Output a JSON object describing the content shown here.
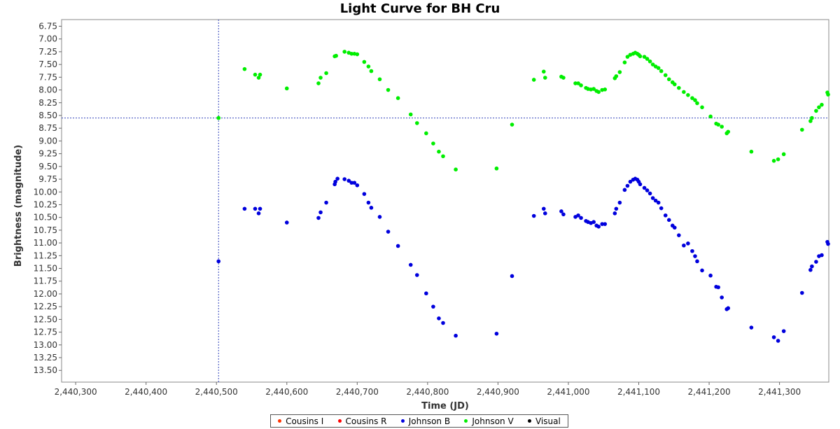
{
  "chart_data": {
    "type": "scatter",
    "title": "Light Curve for BH Cru",
    "xlabel": "Time (JD)",
    "ylabel": "Brightness (magnitude)",
    "xlim": [
      2440280,
      2441370
    ],
    "ylim": [
      13.73,
      6.62
    ],
    "y_inverted": true,
    "x_ticks": [
      2440300,
      2440400,
      2440500,
      2440600,
      2440700,
      2440800,
      2440900,
      2441000,
      2441100,
      2441200,
      2441300
    ],
    "x_tick_labels": [
      "2,440,300",
      "2,440,400",
      "2,440,500",
      "2,440,600",
      "2,440,700",
      "2,440,800",
      "2,440,900",
      "2,441,000",
      "2,441,100",
      "2,441,200",
      "2,441,300"
    ],
    "y_ticks": [
      6.75,
      7.0,
      7.25,
      7.5,
      7.75,
      8.0,
      8.25,
      8.5,
      8.75,
      9.0,
      9.25,
      9.5,
      9.75,
      10.0,
      10.25,
      10.5,
      10.75,
      11.0,
      11.25,
      11.5,
      11.75,
      12.0,
      12.25,
      12.5,
      12.75,
      13.0,
      13.25,
      13.5
    ],
    "y_tick_labels": [
      "6.75",
      "7.00",
      "7.25",
      "7.50",
      "7.75",
      "8.00",
      "8.25",
      "8.50",
      "8.75",
      "9.00",
      "9.25",
      "9.50",
      "9.75",
      "10.00",
      "10.25",
      "10.50",
      "10.75",
      "11.00",
      "11.25",
      "11.50",
      "11.75",
      "12.00",
      "12.25",
      "12.50",
      "12.75",
      "13.00",
      "13.25",
      "13.50"
    ],
    "crosshair": {
      "x": 2440503,
      "y": 8.55
    },
    "grid": false,
    "legend_position": "bottom",
    "series": [
      {
        "name": "Cousins I",
        "color": "#ff3300",
        "points": []
      },
      {
        "name": "Cousins R",
        "color": "#ff0000",
        "points": []
      },
      {
        "name": "Johnson B",
        "color": "#0000dd",
        "points": [
          [
            2440503,
            11.36
          ],
          [
            2440540,
            10.33
          ],
          [
            2440555,
            10.33
          ],
          [
            2440560,
            10.42
          ],
          [
            2440562,
            10.33
          ],
          [
            2440600,
            10.6
          ],
          [
            2440645,
            10.51
          ],
          [
            2440648,
            10.4
          ],
          [
            2440656,
            10.21
          ],
          [
            2440668,
            9.85
          ],
          [
            2440669,
            9.8
          ],
          [
            2440672,
            9.74
          ],
          [
            2440682,
            9.75
          ],
          [
            2440688,
            9.78
          ],
          [
            2440692,
            9.82
          ],
          [
            2440696,
            9.82
          ],
          [
            2440700,
            9.87
          ],
          [
            2440710,
            10.04
          ],
          [
            2440716,
            10.21
          ],
          [
            2440720,
            10.31
          ],
          [
            2440732,
            10.49
          ],
          [
            2440744,
            10.78
          ],
          [
            2440758,
            11.06
          ],
          [
            2440776,
            11.43
          ],
          [
            2440785,
            11.63
          ],
          [
            2440798,
            11.99
          ],
          [
            2440808,
            12.25
          ],
          [
            2440816,
            12.48
          ],
          [
            2440822,
            12.57
          ],
          [
            2440840,
            12.82
          ],
          [
            2440898,
            12.78
          ],
          [
            2440920,
            11.65
          ],
          [
            2440951,
            10.47
          ],
          [
            2440965,
            10.33
          ],
          [
            2440967,
            10.42
          ],
          [
            2440990,
            10.38
          ],
          [
            2440993,
            10.44
          ],
          [
            2441010,
            10.49
          ],
          [
            2441014,
            10.46
          ],
          [
            2441018,
            10.51
          ],
          [
            2441025,
            10.57
          ],
          [
            2441028,
            10.59
          ],
          [
            2441032,
            10.61
          ],
          [
            2441036,
            10.59
          ],
          [
            2441040,
            10.66
          ],
          [
            2441043,
            10.68
          ],
          [
            2441048,
            10.63
          ],
          [
            2441052,
            10.63
          ],
          [
            2441066,
            10.42
          ],
          [
            2441068,
            10.33
          ],
          [
            2441073,
            10.21
          ],
          [
            2441080,
            9.96
          ],
          [
            2441084,
            9.88
          ],
          [
            2441088,
            9.8
          ],
          [
            2441092,
            9.76
          ],
          [
            2441095,
            9.74
          ],
          [
            2441098,
            9.76
          ],
          [
            2441100,
            9.8
          ],
          [
            2441102,
            9.85
          ],
          [
            2441108,
            9.92
          ],
          [
            2441112,
            9.97
          ],
          [
            2441116,
            10.03
          ],
          [
            2441120,
            10.12
          ],
          [
            2441124,
            10.17
          ],
          [
            2441128,
            10.21
          ],
          [
            2441132,
            10.32
          ],
          [
            2441138,
            10.46
          ],
          [
            2441143,
            10.55
          ],
          [
            2441148,
            10.66
          ],
          [
            2441151,
            10.7
          ],
          [
            2441157,
            10.85
          ],
          [
            2441164,
            11.05
          ],
          [
            2441170,
            11.01
          ],
          [
            2441176,
            11.16
          ],
          [
            2441180,
            11.26
          ],
          [
            2441183,
            11.36
          ],
          [
            2441190,
            11.54
          ],
          [
            2441202,
            11.64
          ],
          [
            2441210,
            11.86
          ],
          [
            2441213,
            11.87
          ],
          [
            2441218,
            12.07
          ],
          [
            2441225,
            12.3
          ],
          [
            2441227,
            12.28
          ],
          [
            2441260,
            12.66
          ],
          [
            2441292,
            12.85
          ],
          [
            2441298,
            12.92
          ],
          [
            2441306,
            12.73
          ],
          [
            2441332,
            11.98
          ],
          [
            2441344,
            11.53
          ],
          [
            2441346,
            11.46
          ],
          [
            2441352,
            11.37
          ],
          [
            2441356,
            11.26
          ],
          [
            2441360,
            11.24
          ],
          [
            2441368,
            10.98
          ],
          [
            2441369,
            11.02
          ]
        ]
      },
      {
        "name": "Johnson V",
        "color": "#00ee00",
        "points": [
          [
            2440503,
            8.55
          ],
          [
            2440540,
            7.59
          ],
          [
            2440555,
            7.7
          ],
          [
            2440560,
            7.76
          ],
          [
            2440562,
            7.7
          ],
          [
            2440600,
            7.97
          ],
          [
            2440645,
            7.87
          ],
          [
            2440648,
            7.76
          ],
          [
            2440656,
            7.67
          ],
          [
            2440668,
            7.34
          ],
          [
            2440670,
            7.33
          ],
          [
            2440682,
            7.25
          ],
          [
            2440688,
            7.27
          ],
          [
            2440692,
            7.29
          ],
          [
            2440696,
            7.29
          ],
          [
            2440700,
            7.3
          ],
          [
            2440710,
            7.45
          ],
          [
            2440716,
            7.54
          ],
          [
            2440720,
            7.63
          ],
          [
            2440732,
            7.79
          ],
          [
            2440744,
            8.0
          ],
          [
            2440758,
            8.16
          ],
          [
            2440776,
            8.48
          ],
          [
            2440785,
            8.65
          ],
          [
            2440798,
            8.85
          ],
          [
            2440808,
            9.05
          ],
          [
            2440816,
            9.21
          ],
          [
            2440822,
            9.3
          ],
          [
            2440840,
            9.56
          ],
          [
            2440898,
            9.54
          ],
          [
            2440920,
            8.68
          ],
          [
            2440951,
            7.8
          ],
          [
            2440965,
            7.64
          ],
          [
            2440967,
            7.76
          ],
          [
            2440990,
            7.74
          ],
          [
            2440993,
            7.76
          ],
          [
            2441010,
            7.87
          ],
          [
            2441014,
            7.87
          ],
          [
            2441018,
            7.91
          ],
          [
            2441025,
            7.96
          ],
          [
            2441028,
            7.98
          ],
          [
            2441032,
            7.99
          ],
          [
            2441036,
            7.98
          ],
          [
            2441040,
            8.02
          ],
          [
            2441043,
            8.04
          ],
          [
            2441048,
            8.0
          ],
          [
            2441052,
            7.99
          ],
          [
            2441066,
            7.77
          ],
          [
            2441068,
            7.73
          ],
          [
            2441073,
            7.65
          ],
          [
            2441080,
            7.46
          ],
          [
            2441084,
            7.35
          ],
          [
            2441088,
            7.31
          ],
          [
            2441092,
            7.29
          ],
          [
            2441095,
            7.27
          ],
          [
            2441098,
            7.29
          ],
          [
            2441100,
            7.31
          ],
          [
            2441102,
            7.34
          ],
          [
            2441108,
            7.35
          ],
          [
            2441112,
            7.39
          ],
          [
            2441116,
            7.44
          ],
          [
            2441120,
            7.5
          ],
          [
            2441124,
            7.54
          ],
          [
            2441128,
            7.57
          ],
          [
            2441132,
            7.63
          ],
          [
            2441138,
            7.71
          ],
          [
            2441143,
            7.79
          ],
          [
            2441148,
            7.85
          ],
          [
            2441151,
            7.89
          ],
          [
            2441157,
            7.96
          ],
          [
            2441164,
            8.04
          ],
          [
            2441170,
            8.1
          ],
          [
            2441176,
            8.16
          ],
          [
            2441180,
            8.2
          ],
          [
            2441183,
            8.26
          ],
          [
            2441190,
            8.34
          ],
          [
            2441202,
            8.52
          ],
          [
            2441210,
            8.66
          ],
          [
            2441213,
            8.68
          ],
          [
            2441218,
            8.72
          ],
          [
            2441225,
            8.85
          ],
          [
            2441227,
            8.82
          ],
          [
            2441260,
            9.21
          ],
          [
            2441292,
            9.39
          ],
          [
            2441298,
            9.36
          ],
          [
            2441306,
            9.26
          ],
          [
            2441332,
            8.78
          ],
          [
            2441344,
            8.61
          ],
          [
            2441346,
            8.55
          ],
          [
            2441352,
            8.41
          ],
          [
            2441356,
            8.34
          ],
          [
            2441360,
            8.29
          ],
          [
            2441368,
            8.05
          ],
          [
            2441369,
            8.09
          ]
        ]
      },
      {
        "name": "Visual",
        "color": "#000000",
        "points": []
      }
    ]
  }
}
